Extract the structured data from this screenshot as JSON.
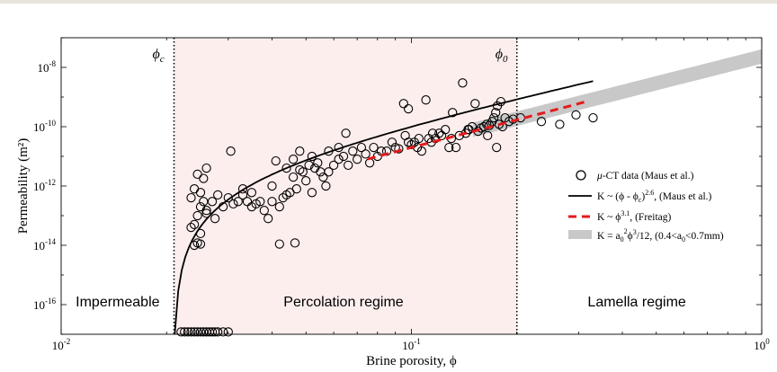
{
  "chart_data": {
    "type": "scatter",
    "xlabel": "Brine porosity, ϕ",
    "ylabel": "Permeability (m²)",
    "x_scale": "log",
    "y_scale": "log",
    "xlim": [
      0.01,
      1
    ],
    "ylim": [
      1e-17,
      1e-07
    ],
    "x_ticks": [
      {
        "value": 0.01,
        "base": "10",
        "exp": "-2"
      },
      {
        "value": 0.1,
        "base": "10",
        "exp": "-1"
      },
      {
        "value": 1,
        "base": "10",
        "exp": "0"
      }
    ],
    "y_ticks": [
      {
        "value": 1e-08,
        "base": "10",
        "exp": "-8"
      },
      {
        "value": 1e-10,
        "base": "10",
        "exp": "-10"
      },
      {
        "value": 1e-12,
        "base": "10",
        "exp": "-12"
      },
      {
        "value": 1e-14,
        "base": "10",
        "exp": "-14"
      },
      {
        "value": 1e-16,
        "base": "10",
        "exp": "-16"
      }
    ],
    "phi_c": 0.021,
    "phi_0": 0.2,
    "phi_c_label": "ϕ",
    "phi_c_sub": "c",
    "phi_0_label": "ϕ",
    "phi_0_sub": "0",
    "regions": [
      {
        "label": "Impermeable",
        "x_center": 0.0145
      },
      {
        "label": "Percolation regime",
        "x_center": 0.064
      },
      {
        "label": "Lamella regime",
        "x_center": 0.44
      }
    ],
    "shaded_region": {
      "from": 0.021,
      "to": 0.2,
      "color": "#fdeeee"
    },
    "series": [
      {
        "name": "μ-CT data (Maus et al.)",
        "kind": "scatter",
        "points": [
          [
            0.022,
            1.2e-17
          ],
          [
            0.0225,
            1.2e-17
          ],
          [
            0.023,
            1.2e-17
          ],
          [
            0.0235,
            1.2e-17
          ],
          [
            0.024,
            1.2e-17
          ],
          [
            0.0245,
            1.2e-17
          ],
          [
            0.025,
            1.2e-17
          ],
          [
            0.0255,
            1.2e-17
          ],
          [
            0.026,
            1.2e-17
          ],
          [
            0.0265,
            1.2e-17
          ],
          [
            0.027,
            1.2e-17
          ],
          [
            0.0275,
            1.2e-17
          ],
          [
            0.028,
            1.2e-17
          ],
          [
            0.029,
            1.2e-17
          ],
          [
            0.03,
            1.2e-17
          ],
          [
            0.0235,
            4e-13
          ],
          [
            0.024,
            8e-13
          ],
          [
            0.0245,
            2.5e-12
          ],
          [
            0.025,
            6e-13
          ],
          [
            0.0255,
            3e-13
          ],
          [
            0.026,
            4e-12
          ],
          [
            0.0245,
            1e-13
          ],
          [
            0.025,
            2e-13
          ],
          [
            0.026,
            1.5e-13
          ],
          [
            0.0255,
            1.8e-12
          ],
          [
            0.024,
            1e-14
          ],
          [
            0.0245,
            1.2e-14
          ],
          [
            0.025,
            1.1e-14
          ],
          [
            0.0235,
            4e-14
          ],
          [
            0.024,
            5e-14
          ],
          [
            0.025,
            2.5e-14
          ],
          [
            0.026,
            1.2e-13
          ],
          [
            0.027,
            3e-13
          ],
          [
            0.028,
            5e-13
          ],
          [
            0.0275,
            8e-14
          ],
          [
            0.029,
            2e-13
          ],
          [
            0.03,
            4e-13
          ],
          [
            0.031,
            2.5e-13
          ],
          [
            0.032,
            3e-13
          ],
          [
            0.033,
            5e-13
          ],
          [
            0.034,
            3e-13
          ],
          [
            0.035,
            2e-13
          ],
          [
            0.036,
            2.5e-13
          ],
          [
            0.037,
            3e-13
          ],
          [
            0.0305,
            1.5e-11
          ],
          [
            0.033,
            8e-13
          ],
          [
            0.035,
            6e-13
          ],
          [
            0.038,
            1.5e-13
          ],
          [
            0.039,
            8e-14
          ],
          [
            0.04,
            3e-13
          ],
          [
            0.04,
            1e-12
          ],
          [
            0.042,
            1.1e-14
          ],
          [
            0.042,
            2e-13
          ],
          [
            0.043,
            4e-13
          ],
          [
            0.044,
            4e-12
          ],
          [
            0.045,
            6e-13
          ],
          [
            0.046,
            2e-12
          ],
          [
            0.0465,
            1.2e-14
          ],
          [
            0.047,
            8e-13
          ],
          [
            0.048,
            3.5e-12
          ],
          [
            0.049,
            3e-12
          ],
          [
            0.05,
            1.5e-12
          ],
          [
            0.051,
            5e-12
          ],
          [
            0.052,
            1e-11
          ],
          [
            0.053,
            4e-12
          ],
          [
            0.054,
            6e-12
          ],
          [
            0.055,
            3e-12
          ],
          [
            0.056,
            2e-12
          ],
          [
            0.057,
            1e-12
          ],
          [
            0.058,
            3e-12
          ],
          [
            0.06,
            5e-12
          ],
          [
            0.062,
            2e-11
          ],
          [
            0.062,
            8e-12
          ],
          [
            0.064,
            1e-11
          ],
          [
            0.066,
            5e-12
          ],
          [
            0.068,
            1.5e-11
          ],
          [
            0.07,
            8e-12
          ],
          [
            0.072,
            2e-11
          ],
          [
            0.074,
            1.2e-11
          ],
          [
            0.076,
            6e-12
          ],
          [
            0.078,
            2e-11
          ],
          [
            0.08,
            1e-11
          ],
          [
            0.082,
            1.5e-11
          ],
          [
            0.085,
            1.5e-11
          ],
          [
            0.088,
            3e-11
          ],
          [
            0.09,
            2e-11
          ],
          [
            0.092,
            1.8e-11
          ],
          [
            0.095,
            6e-10
          ],
          [
            0.098,
            3e-11
          ],
          [
            0.1,
            2.5e-11
          ],
          [
            0.102,
            3e-11
          ],
          [
            0.104,
            2e-11
          ],
          [
            0.107,
            1.5e-11
          ],
          [
            0.11,
            8e-10
          ],
          [
            0.112,
            4e-11
          ],
          [
            0.114,
            3e-11
          ],
          [
            0.117,
            4e-11
          ],
          [
            0.12,
            6e-11
          ],
          [
            0.122,
            5e-11
          ],
          [
            0.125,
            8e-11
          ],
          [
            0.128,
            2e-11
          ],
          [
            0.131,
            3e-10
          ],
          [
            0.134,
            2e-11
          ],
          [
            0.137,
            5e-11
          ],
          [
            0.14,
            3e-09
          ],
          [
            0.143,
            6e-11
          ],
          [
            0.146,
            8e-11
          ],
          [
            0.149,
            1e-10
          ],
          [
            0.152,
            6e-10
          ],
          [
            0.155,
            7e-11
          ],
          [
            0.158,
            9e-11
          ],
          [
            0.161,
            1e-10
          ],
          [
            0.164,
            1.2e-10
          ],
          [
            0.167,
            1.1e-10
          ],
          [
            0.17,
            1.5e-10
          ],
          [
            0.172,
            2e-10
          ],
          [
            0.174,
            3e-10
          ],
          [
            0.176,
            5e-10
          ],
          [
            0.178,
            1.2e-10
          ],
          [
            0.18,
            7e-10
          ],
          [
            0.182,
            1e-10
          ],
          [
            0.185,
            2e-10
          ],
          [
            0.19,
            1.5e-10
          ],
          [
            0.195,
            1.8e-10
          ],
          [
            0.205,
            2e-10
          ],
          [
            0.235,
            1.5e-10
          ],
          [
            0.265,
            1.2e-10
          ],
          [
            0.295,
            2.5e-10
          ],
          [
            0.33,
            2e-10
          ],
          [
            0.175,
            2e-11
          ],
          [
            0.165,
            5e-11
          ],
          [
            0.145,
            8e-11
          ],
          [
            0.13,
            4e-11
          ],
          [
            0.115,
            6e-11
          ],
          [
            0.105,
            4e-11
          ],
          [
            0.098,
            4e-10
          ],
          [
            0.096,
            5e-11
          ],
          [
            0.065,
            6e-11
          ],
          [
            0.058,
            1.5e-11
          ],
          [
            0.052,
            6e-13
          ],
          [
            0.048,
            1.5e-11
          ],
          [
            0.046,
            8e-12
          ],
          [
            0.044,
            5e-13
          ],
          [
            0.041,
            7e-12
          ]
        ]
      },
      {
        "name": "K ~ (ϕ - ϕc)^2.6, (Maus et al.)",
        "kind": "line",
        "formula": "power-shifted",
        "coef": 7.3e-08,
        "exp": 2.6,
        "x_from": 0.0211,
        "x_to": 0.33,
        "color": "#000000"
      },
      {
        "name": "K ~ ϕ^3.1, (Freitag)",
        "kind": "line",
        "formula": "power",
        "coef": 2.5e-08,
        "exp": 3.1,
        "x_from": 0.075,
        "x_to": 0.32,
        "color": "#e41a1c",
        "dash": true
      },
      {
        "name": "K = a0²ϕ³/12, (0.4<a0<0.7mm)",
        "kind": "band",
        "formula": "kozeny",
        "a_low": 0.0004,
        "a_high": 0.0007,
        "x_from": 0.15,
        "x_to": 1.0,
        "color": "#c8c8c8"
      }
    ],
    "legend": {
      "placement": "right",
      "entries": [
        {
          "kind": "marker",
          "prefix": "μ",
          "text": "-CT data (Maus et al.)"
        },
        {
          "kind": "line",
          "parts": [
            "K ~ (ϕ - ϕ",
            "c",
            ")",
            "2.6",
            ", (Maus et al.)"
          ]
        },
        {
          "kind": "dash",
          "parts": [
            "K ~ ϕ",
            "3.1",
            ", (Freitag)"
          ]
        },
        {
          "kind": "band",
          "parts": [
            "K = a",
            "0",
            "2",
            "ϕ",
            "3",
            "/12, (0.4<a",
            "0",
            "<0.7mm)"
          ]
        }
      ]
    }
  }
}
